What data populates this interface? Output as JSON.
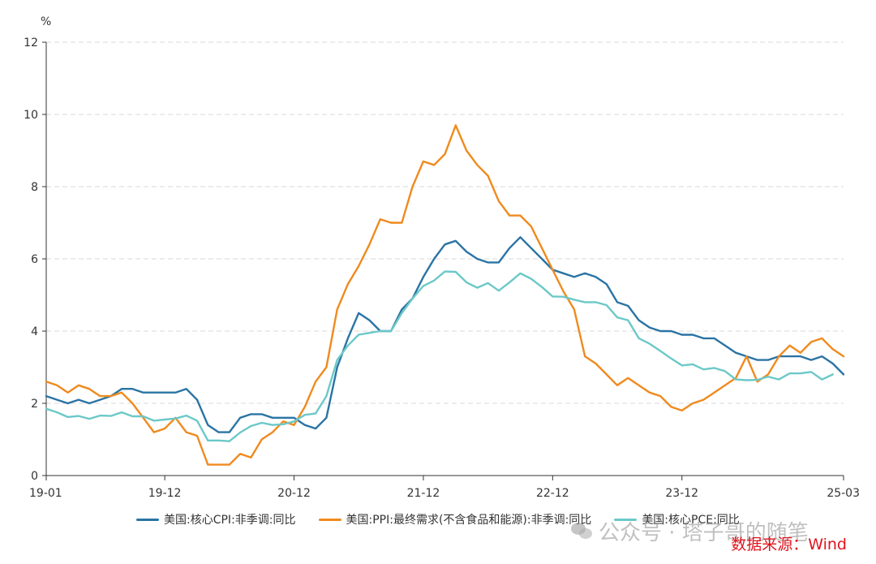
{
  "chart_data": {
    "type": "line",
    "y_unit": "%",
    "ylim": [
      0,
      12
    ],
    "y_ticks": [
      0,
      2,
      4,
      6,
      8,
      10,
      12
    ],
    "x_tick_labels": [
      "19-01",
      "19-12",
      "20-12",
      "21-12",
      "22-12",
      "23-12",
      "25-03"
    ],
    "x_tick_index": [
      0,
      11,
      23,
      35,
      47,
      59,
      74
    ],
    "grid": "horizontal dashed",
    "legend_position": "bottom",
    "series": [
      {
        "name": "美国:核心CPI:非季调:同比",
        "color": "#2a74a4",
        "values": [
          2.2,
          2.1,
          2.0,
          2.1,
          2.0,
          2.1,
          2.2,
          2.4,
          2.4,
          2.3,
          2.3,
          2.3,
          2.3,
          2.4,
          2.1,
          1.4,
          1.2,
          1.2,
          1.6,
          1.7,
          1.7,
          1.6,
          1.6,
          1.6,
          1.4,
          1.3,
          1.6,
          3.0,
          3.8,
          4.5,
          4.3,
          4.0,
          4.0,
          4.6,
          4.9,
          5.5,
          6.0,
          6.4,
          6.5,
          6.2,
          6.0,
          5.9,
          5.9,
          6.3,
          6.6,
          6.3,
          6.0,
          5.7,
          5.6,
          5.5,
          5.6,
          5.5,
          5.3,
          4.8,
          4.7,
          4.3,
          4.1,
          4.0,
          4.0,
          3.9,
          3.9,
          3.8,
          3.8,
          3.6,
          3.4,
          3.3,
          3.2,
          3.2,
          3.3,
          3.3,
          3.3,
          3.2,
          3.3,
          3.1,
          2.8
        ]
      },
      {
        "name": "美国:PPI:最终需求(不含食品和能源):非季调:同比",
        "color": "#f08a1e",
        "values": [
          2.6,
          2.5,
          2.3,
          2.5,
          2.4,
          2.2,
          2.2,
          2.3,
          2.0,
          1.6,
          1.2,
          1.3,
          1.6,
          1.2,
          1.1,
          0.3,
          0.3,
          0.3,
          0.6,
          0.5,
          1.0,
          1.2,
          1.5,
          1.4,
          1.9,
          2.6,
          3.0,
          4.6,
          5.3,
          5.8,
          6.4,
          7.1,
          7.0,
          7.0,
          8.0,
          8.7,
          8.6,
          8.9,
          9.7,
          9.0,
          8.6,
          8.3,
          7.6,
          7.2,
          7.2,
          6.9,
          6.3,
          5.7,
          5.1,
          4.6,
          3.3,
          3.1,
          2.8,
          2.5,
          2.7,
          2.5,
          2.3,
          2.2,
          1.9,
          1.8,
          2.0,
          2.1,
          2.3,
          2.5,
          2.7,
          3.3,
          2.6,
          2.8,
          3.3,
          3.6,
          3.4,
          3.7,
          3.8,
          3.5,
          3.3
        ]
      },
      {
        "name": "美国:核心PCE:同比",
        "color": "#6cc8c8",
        "values": [
          1.85,
          1.75,
          1.62,
          1.65,
          1.57,
          1.66,
          1.65,
          1.75,
          1.64,
          1.64,
          1.52,
          1.55,
          1.58,
          1.66,
          1.52,
          0.97,
          0.97,
          0.95,
          1.19,
          1.37,
          1.46,
          1.4,
          1.42,
          1.5,
          1.68,
          1.72,
          2.2,
          3.2,
          3.6,
          3.9,
          3.95,
          4.0,
          4.0,
          4.5,
          4.9,
          5.25,
          5.4,
          5.65,
          5.64,
          5.35,
          5.2,
          5.33,
          5.12,
          5.35,
          5.6,
          5.45,
          5.22,
          4.96,
          4.95,
          4.87,
          4.8,
          4.8,
          4.72,
          4.38,
          4.3,
          3.8,
          3.65,
          3.45,
          3.24,
          3.05,
          3.08,
          2.94,
          2.98,
          2.89,
          2.66,
          2.64,
          2.65,
          2.74,
          2.66,
          2.83,
          2.83,
          2.87,
          2.66,
          2.8
        ]
      }
    ]
  },
  "watermark": "公众号 · 塔子哥的随笔",
  "source": "数据来源：Wind"
}
